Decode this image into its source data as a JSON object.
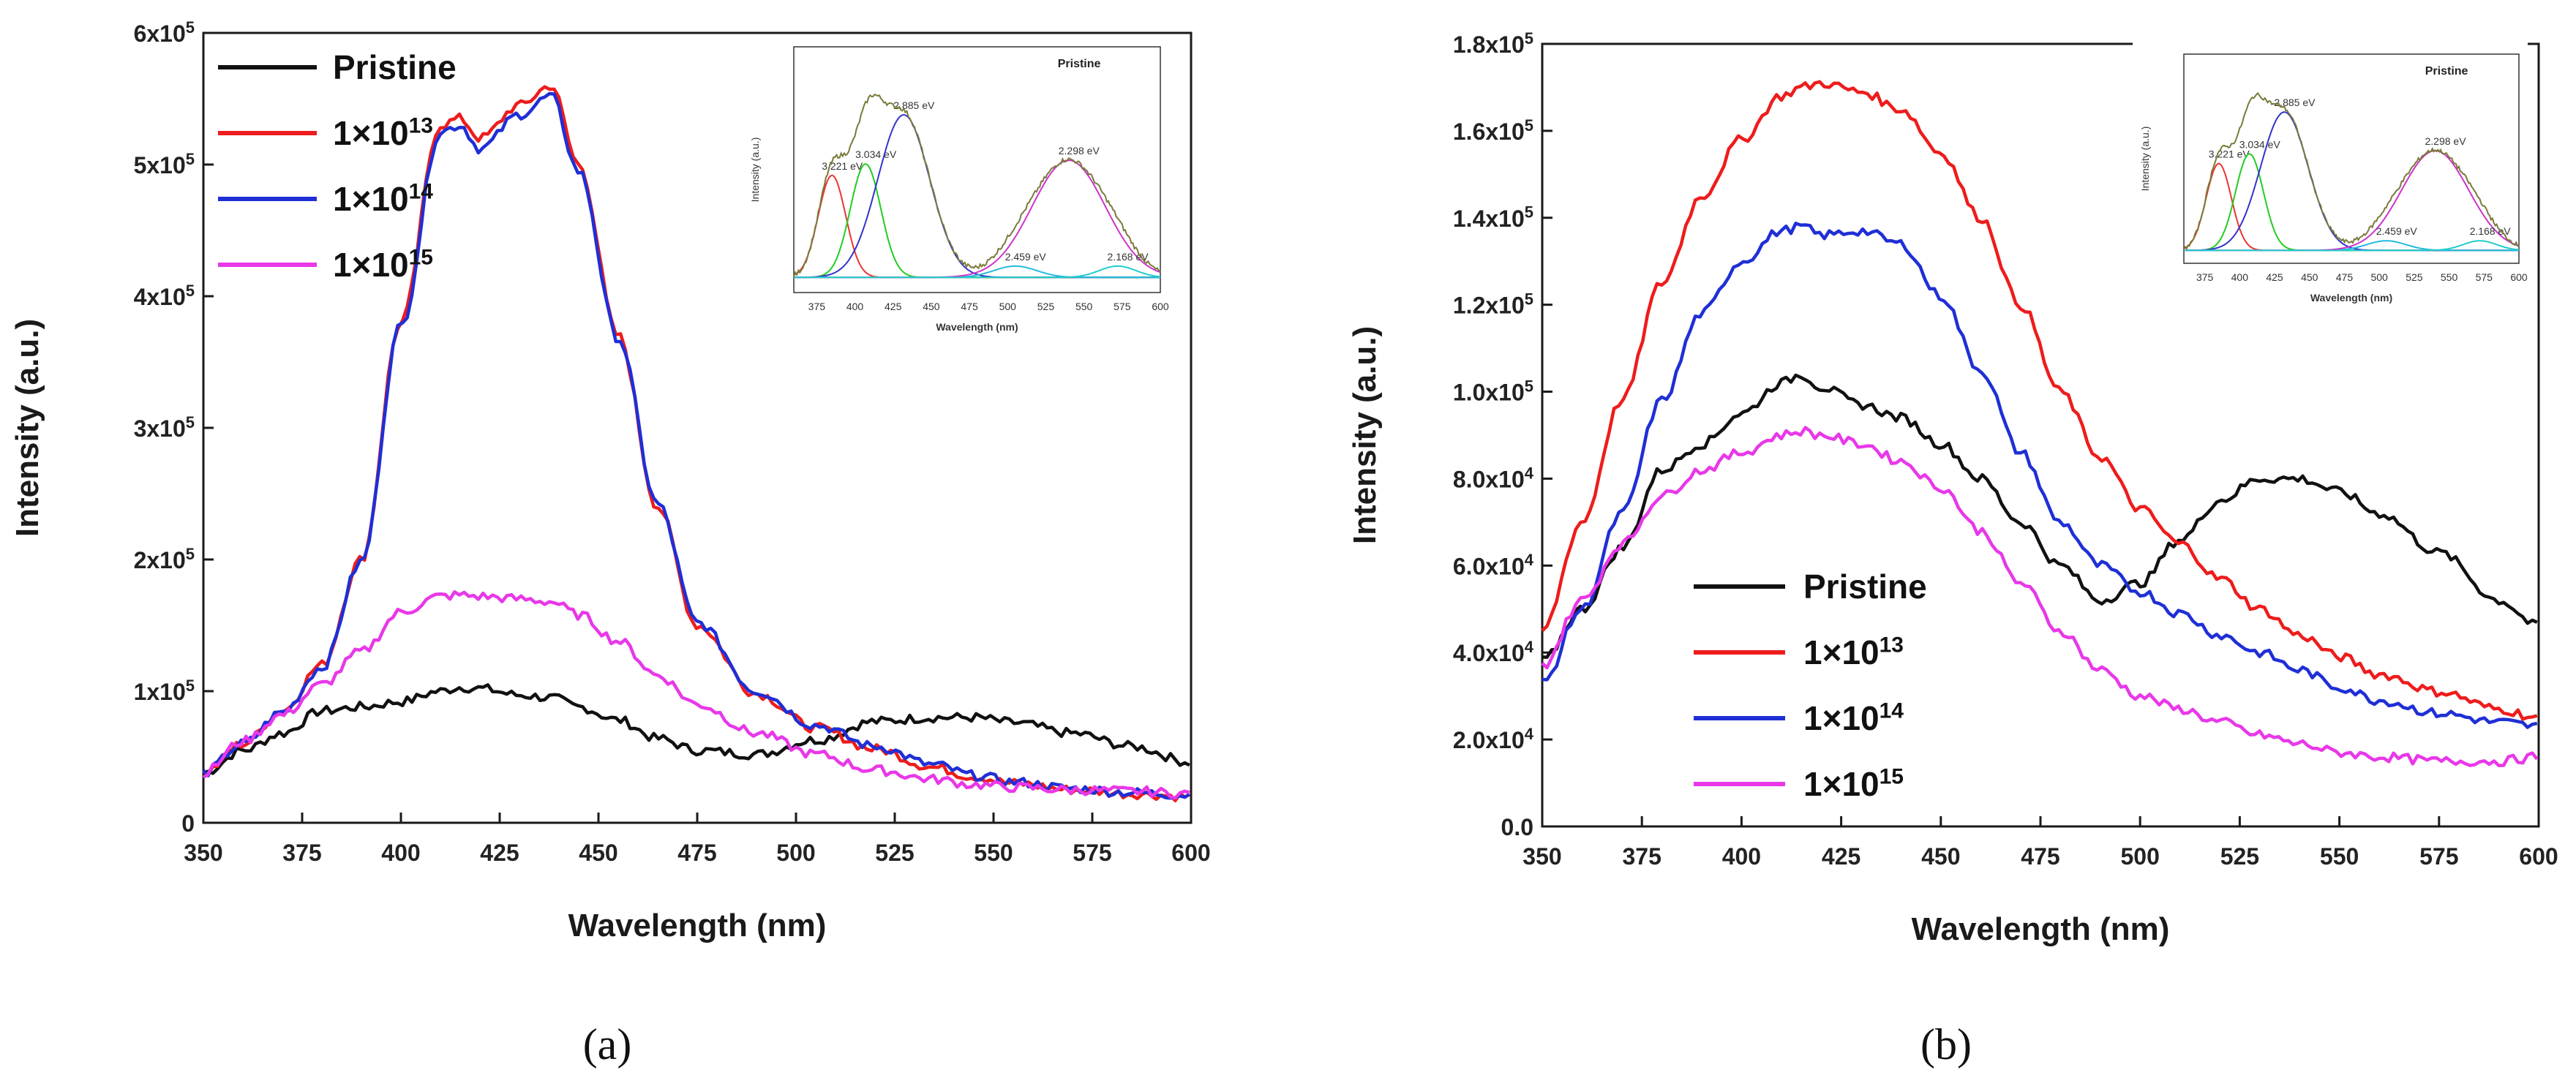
{
  "chart_data": [
    {
      "panel": "(a)",
      "type": "line",
      "xlabel": "Wavelength (nm)",
      "ylabel": "Intensity (a.u.)",
      "xlim": [
        350,
        600
      ],
      "ylim": [
        0,
        600000
      ],
      "xticks": [
        "350",
        "375",
        "400",
        "425",
        "450",
        "475",
        "500",
        "525",
        "550",
        "575",
        "600"
      ],
      "yticks": [
        {
          "v": 0,
          "mant": "0",
          "exp": ""
        },
        {
          "v": 100000,
          "mant": "1x10",
          "exp": "5"
        },
        {
          "v": 200000,
          "mant": "2x10",
          "exp": "5"
        },
        {
          "v": 300000,
          "mant": "3x10",
          "exp": "5"
        },
        {
          "v": 400000,
          "mant": "4x10",
          "exp": "5"
        },
        {
          "v": 500000,
          "mant": "5x10",
          "exp": "5"
        },
        {
          "v": 600000,
          "mant": "6x10",
          "exp": "5"
        }
      ],
      "legend_position": "top-left",
      "x": [
        350,
        360,
        370,
        380,
        390,
        400,
        410,
        415,
        420,
        430,
        438,
        445,
        455,
        465,
        475,
        490,
        505,
        520,
        535,
        545,
        555,
        570,
        585,
        600
      ],
      "series": [
        {
          "name": "Pristine",
          "base": "1×10",
          "exp": "",
          "color": "#111111",
          "values": [
            38000,
            55000,
            68000,
            85000,
            88000,
            92000,
            100000,
            103000,
            102000,
            97000,
            95000,
            88000,
            78000,
            64000,
            55000,
            52000,
            63000,
            77000,
            80000,
            80000,
            76000,
            68000,
            58000,
            46000
          ]
        },
        {
          "name": "1×10",
          "exp": "13",
          "color": "#ee1c1c",
          "values": [
            38000,
            60000,
            85000,
            120000,
            200000,
            380000,
            530000,
            535000,
            520000,
            545000,
            560000,
            500000,
            370000,
            240000,
            150000,
            98000,
            72000,
            56000,
            42000,
            35000,
            30000,
            25000,
            22000,
            20000
          ]
        },
        {
          "name": "1×10",
          "exp": "14",
          "color": "#1f2fd6",
          "values": [
            38000,
            60000,
            84000,
            118000,
            198000,
            378000,
            525000,
            530000,
            512000,
            538000,
            552000,
            495000,
            368000,
            242000,
            152000,
            100000,
            74000,
            58000,
            44000,
            36000,
            31000,
            26000,
            23000,
            21000
          ]
        },
        {
          "name": "1×10",
          "exp": "15",
          "color": "#e838e8",
          "values": [
            38000,
            62000,
            82000,
            105000,
            130000,
            160000,
            172000,
            173000,
            172000,
            170000,
            168000,
            158000,
            138000,
            112000,
            90000,
            68000,
            52000,
            40000,
            33000,
            29000,
            27000,
            25000,
            24000,
            22000
          ]
        }
      ]
    },
    {
      "panel": "(b)",
      "type": "line",
      "xlabel": "Wavelength (nm)",
      "ylabel": "Intensity (a.u.)",
      "xlim": [
        350,
        600
      ],
      "ylim": [
        0,
        180000
      ],
      "xticks": [
        "350",
        "375",
        "400",
        "425",
        "450",
        "475",
        "500",
        "525",
        "550",
        "575",
        "600"
      ],
      "yticks": [
        {
          "v": 0,
          "mant": "0.0",
          "exp": ""
        },
        {
          "v": 20000,
          "mant": "2.0x10",
          "exp": "4"
        },
        {
          "v": 40000,
          "mant": "4.0x10",
          "exp": "4"
        },
        {
          "v": 60000,
          "mant": "6.0x10",
          "exp": "4"
        },
        {
          "v": 80000,
          "mant": "8.0x10",
          "exp": "4"
        },
        {
          "v": 100000,
          "mant": "1.0x10",
          "exp": "5"
        },
        {
          "v": 120000,
          "mant": "1.2x10",
          "exp": "5"
        },
        {
          "v": 140000,
          "mant": "1.4x10",
          "exp": "5"
        },
        {
          "v": 160000,
          "mant": "1.6x10",
          "exp": "5"
        },
        {
          "v": 180000,
          "mant": "1.8x10",
          "exp": "5"
        }
      ],
      "legend_position": "bottom-left",
      "x": [
        350,
        360,
        370,
        380,
        390,
        400,
        410,
        415,
        420,
        430,
        440,
        450,
        460,
        470,
        480,
        490,
        500,
        510,
        520,
        530,
        540,
        550,
        560,
        575,
        590,
        600
      ],
      "series": [
        {
          "name": "Pristine",
          "exp": "",
          "color": "#111111",
          "values": [
            38000,
            50000,
            64000,
            82000,
            88000,
            95000,
            102000,
            104000,
            101000,
            97000,
            94000,
            88000,
            80000,
            70000,
            60000,
            52000,
            56000,
            66000,
            75000,
            80000,
            80000,
            77000,
            72000,
            63000,
            52000,
            46000
          ]
        },
        {
          "name": "1×10",
          "exp": "13",
          "color": "#ee1c1c",
          "values": [
            45000,
            70000,
            98000,
            125000,
            145000,
            158000,
            168000,
            170000,
            171000,
            169000,
            165000,
            155000,
            140000,
            120000,
            100000,
            85000,
            73000,
            65000,
            57000,
            50000,
            44000,
            39000,
            35000,
            31000,
            27000,
            25000
          ]
        },
        {
          "name": "1×10",
          "exp": "14",
          "color": "#1f2fd6",
          "values": [
            33000,
            50000,
            72000,
            98000,
            118000,
            130000,
            137000,
            138000,
            136000,
            137000,
            134000,
            122000,
            105000,
            86000,
            70000,
            60000,
            54000,
            49000,
            44000,
            40000,
            36000,
            32000,
            29000,
            26000,
            24000,
            23000
          ]
        },
        {
          "name": "1×10",
          "exp": "15",
          "color": "#e838e8",
          "values": [
            37000,
            52000,
            65000,
            76000,
            82000,
            86000,
            90000,
            91000,
            90000,
            88000,
            84000,
            78000,
            68000,
            56000,
            45000,
            36000,
            30000,
            27000,
            24000,
            21000,
            19000,
            17000,
            16000,
            15000,
            15000,
            16000
          ]
        }
      ]
    }
  ],
  "inset": {
    "title": "Pristine",
    "xlabel": "Wavelength (nm)",
    "ylabel": "Intensity (a.u.)",
    "xticks": [
      "375",
      "400",
      "425",
      "450",
      "475",
      "500",
      "525",
      "550",
      "575",
      "600"
    ],
    "peak_labels": [
      "3.221 eV",
      "3.034 eV",
      "2.885 eV",
      "2.459 eV",
      "2.298 eV",
      "2.168 eV"
    ]
  },
  "panel_labels": [
    "(a)",
    "(b)"
  ]
}
